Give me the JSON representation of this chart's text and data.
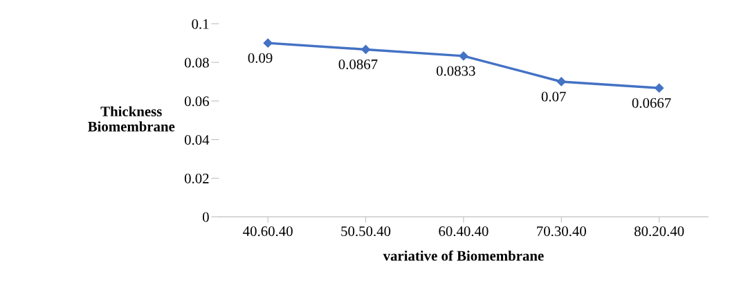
{
  "chart_data": {
    "type": "line",
    "xlabel": "variative of Biomembrane",
    "ylabel": "Thickness\nBiomembrane",
    "categories": [
      "40.60.40",
      "50.50.40",
      "60.40.40",
      "70.30.40",
      "80.20.40"
    ],
    "series": [
      {
        "color": "#4472c4",
        "values": [
          0.09,
          0.0867,
          0.0833,
          0.07,
          0.0667
        ]
      }
    ],
    "ylim": [
      0,
      0.1
    ],
    "yticks": [
      0,
      0.02,
      0.04,
      0.06,
      0.08,
      0.1
    ],
    "marker": "diamond",
    "line_style": "solid",
    "data_labels": true,
    "grid": false,
    "legend": false
  }
}
